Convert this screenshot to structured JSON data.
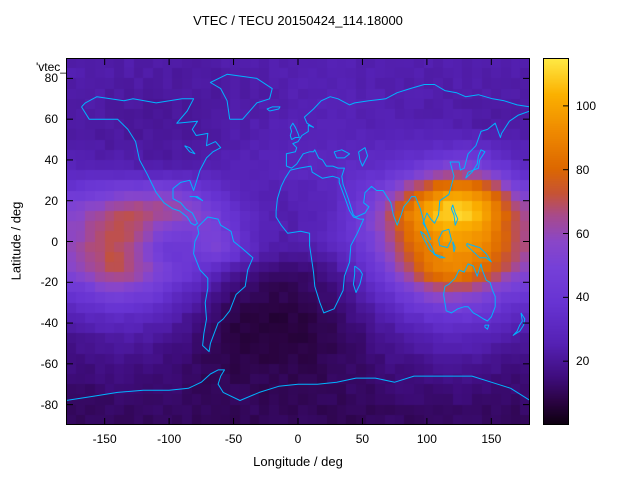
{
  "figure": {
    "title": "VTEC / TECU 20150424_114.18000",
    "stray_label": "'vtec_",
    "background": "#ffffff"
  },
  "chart_data": {
    "type": "heatmap",
    "title": "VTEC / TECU 20150424_114.18000",
    "xlabel": "Longitude / deg",
    "ylabel": "Latitude / deg",
    "units": "TECU",
    "x_range": [
      -180,
      180
    ],
    "y_range": [
      -90,
      90
    ],
    "x_ticks": [
      -150,
      -100,
      -50,
      0,
      50,
      100,
      150
    ],
    "y_ticks": [
      -80,
      -60,
      -40,
      -20,
      0,
      20,
      40,
      60,
      80
    ],
    "grid_on": false,
    "legend_position": "colorbar-right",
    "colorbar": {
      "min": 0,
      "max": 115,
      "ticks": [
        20,
        40,
        60,
        80,
        100
      ]
    },
    "palette_stops": [
      [
        0.0,
        "#0d0010"
      ],
      [
        0.06,
        "#2a0340"
      ],
      [
        0.13,
        "#3f0d7e"
      ],
      [
        0.22,
        "#5521b4"
      ],
      [
        0.33,
        "#6733d2"
      ],
      [
        0.43,
        "#7640d8"
      ],
      [
        0.5,
        "#8a46c8"
      ],
      [
        0.57,
        "#a84a8c"
      ],
      [
        0.63,
        "#c65336"
      ],
      [
        0.7,
        "#dd6800"
      ],
      [
        0.8,
        "#ef8a00"
      ],
      [
        0.9,
        "#fbb000"
      ],
      [
        1.0,
        "#ffea45"
      ]
    ],
    "overlay": "world-coastlines",
    "coastline_color": "#00b4ff",
    "grid": {
      "lon_centers_start": -172.5,
      "lon_step": 15,
      "lat_centers_start": 85,
      "lat_step": -10,
      "values": [
        [
          24,
          24,
          23,
          23,
          22,
          22,
          22,
          22,
          23,
          23,
          24,
          24,
          25,
          25,
          25,
          24,
          24,
          24,
          24,
          24,
          24,
          24,
          24,
          24
        ],
        [
          23,
          23,
          22,
          22,
          21,
          21,
          21,
          21,
          22,
          22,
          23,
          24,
          25,
          25,
          25,
          25,
          24,
          24,
          24,
          23,
          23,
          23,
          23,
          23
        ],
        [
          22,
          22,
          21,
          21,
          20,
          20,
          20,
          21,
          22,
          23,
          24,
          25,
          26,
          26,
          26,
          25,
          25,
          24,
          24,
          23,
          23,
          22,
          22,
          22
        ],
        [
          22,
          21,
          21,
          20,
          20,
          20,
          21,
          22,
          23,
          24,
          25,
          26,
          27,
          27,
          27,
          26,
          26,
          25,
          25,
          25,
          24,
          23,
          22,
          22
        ],
        [
          24,
          23,
          22,
          22,
          21,
          21,
          22,
          23,
          24,
          25,
          26,
          27,
          28,
          28,
          29,
          29,
          30,
          30,
          32,
          34,
          36,
          34,
          30,
          26
        ],
        [
          28,
          27,
          26,
          25,
          24,
          24,
          25,
          26,
          26,
          27,
          28,
          29,
          30,
          31,
          32,
          33,
          35,
          40,
          48,
          55,
          58,
          52,
          42,
          32
        ],
        [
          40,
          45,
          48,
          50,
          52,
          50,
          45,
          38,
          30,
          26,
          25,
          26,
          27,
          28,
          34,
          40,
          50,
          65,
          80,
          92,
          95,
          88,
          70,
          50
        ],
        [
          55,
          62,
          68,
          70,
          68,
          65,
          58,
          48,
          36,
          30,
          26,
          24,
          25,
          28,
          36,
          48,
          65,
          85,
          100,
          112,
          114,
          105,
          85,
          65
        ],
        [
          58,
          66,
          72,
          68,
          58,
          48,
          50,
          52,
          42,
          32,
          26,
          24,
          26,
          30,
          38,
          48,
          62,
          80,
          92,
          100,
          102,
          96,
          82,
          65
        ],
        [
          60,
          68,
          72,
          62,
          48,
          38,
          42,
          52,
          46,
          32,
          24,
          21,
          22,
          26,
          32,
          42,
          56,
          72,
          85,
          92,
          94,
          90,
          80,
          66
        ],
        [
          55,
          65,
          70,
          66,
          58,
          48,
          40,
          30,
          20,
          15,
          13,
          12,
          13,
          16,
          24,
          34,
          48,
          64,
          80,
          92,
          90,
          82,
          70,
          58
        ],
        [
          40,
          48,
          52,
          50,
          44,
          36,
          28,
          20,
          13,
          10,
          9,
          9,
          10,
          13,
          18,
          26,
          36,
          46,
          56,
          64,
          62,
          56,
          48,
          42
        ],
        [
          28,
          32,
          34,
          33,
          30,
          25,
          20,
          14,
          9,
          7,
          6,
          7,
          8,
          10,
          14,
          19,
          26,
          32,
          38,
          42,
          42,
          40,
          35,
          30
        ],
        [
          20,
          22,
          24,
          24,
          22,
          19,
          15,
          11,
          8,
          6,
          6,
          6,
          7,
          9,
          12,
          15,
          19,
          23,
          27,
          29,
          29,
          28,
          25,
          22
        ],
        [
          16,
          17,
          18,
          18,
          17,
          15,
          13,
          10,
          8,
          7,
          7,
          7,
          8,
          9,
          11,
          13,
          16,
          18,
          20,
          22,
          22,
          21,
          19,
          17
        ],
        [
          14,
          15,
          15,
          15,
          14,
          13,
          12,
          10,
          9,
          9,
          9,
          9,
          10,
          10,
          11,
          12,
          14,
          15,
          16,
          17,
          17,
          16,
          15,
          14
        ],
        [
          12,
          12,
          13,
          13,
          12,
          12,
          11,
          10,
          10,
          10,
          10,
          10,
          10,
          10,
          11,
          11,
          12,
          13,
          13,
          14,
          14,
          13,
          13,
          12
        ],
        [
          11,
          11,
          11,
          11,
          11,
          11,
          10,
          10,
          10,
          10,
          10,
          10,
          10,
          10,
          10,
          10,
          11,
          11,
          11,
          12,
          12,
          11,
          11,
          11
        ]
      ]
    }
  }
}
